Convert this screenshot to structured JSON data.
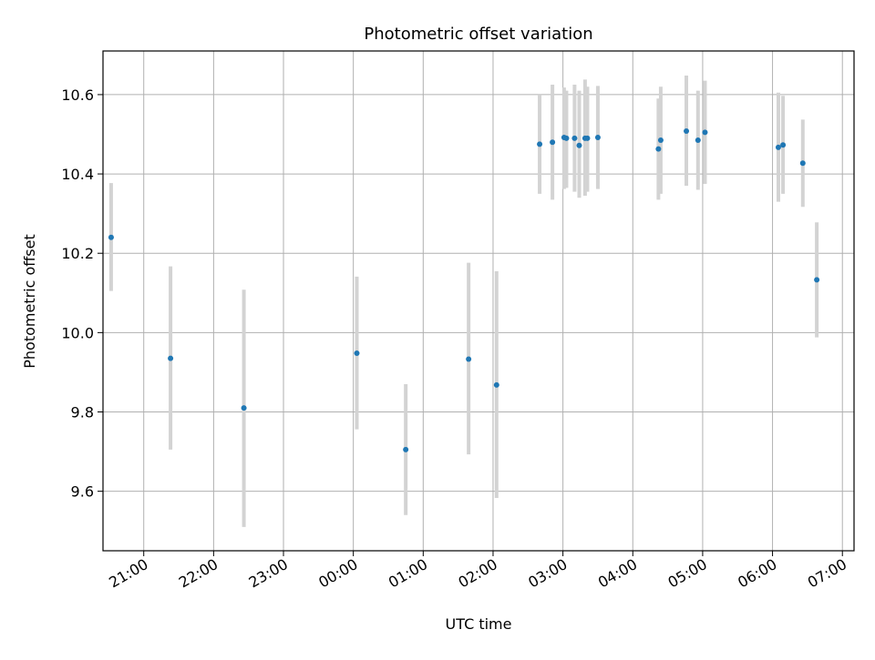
{
  "chart_data": {
    "type": "scatter",
    "title": "Photometric offset variation",
    "xlabel": "UTC time",
    "ylabel": "Photometric offset",
    "x_axis_type": "time",
    "xlim": [
      "20:25",
      "07:10"
    ],
    "ylim": [
      9.45,
      10.71
    ],
    "x_ticks": [
      "21:00",
      "22:00",
      "23:00",
      "00:00",
      "01:00",
      "02:00",
      "03:00",
      "04:00",
      "05:00",
      "06:00",
      "07:00"
    ],
    "y_ticks": [
      "9.6",
      "9.8",
      "10.0",
      "10.2",
      "10.4",
      "10.6"
    ],
    "grid": true,
    "point_color": "#1f77b4",
    "errorbar_color": "#d3d3d3",
    "points": [
      {
        "time": "20:32",
        "value": 10.24,
        "err_low": 10.105,
        "err_high": 10.377
      },
      {
        "time": "21:23",
        "value": 9.935,
        "err_low": 9.705,
        "err_high": 10.167
      },
      {
        "time": "22:26",
        "value": 9.81,
        "err_low": 9.51,
        "err_high": 10.108
      },
      {
        "time": "00:03",
        "value": 9.948,
        "err_low": 9.756,
        "err_high": 10.141
      },
      {
        "time": "00:45",
        "value": 9.705,
        "err_low": 9.54,
        "err_high": 9.87
      },
      {
        "time": "01:39",
        "value": 9.933,
        "err_low": 9.693,
        "err_high": 10.176
      },
      {
        "time": "02:03",
        "value": 9.868,
        "err_low": 9.583,
        "err_high": 10.155
      },
      {
        "time": "02:40",
        "value": 10.475,
        "err_low": 10.35,
        "err_high": 10.6
      },
      {
        "time": "02:51",
        "value": 10.48,
        "err_low": 10.335,
        "err_high": 10.625
      },
      {
        "time": "03:01",
        "value": 10.492,
        "err_low": 10.362,
        "err_high": 10.618
      },
      {
        "time": "03:03",
        "value": 10.49,
        "err_low": 10.365,
        "err_high": 10.61
      },
      {
        "time": "03:10",
        "value": 10.49,
        "err_low": 10.355,
        "err_high": 10.625
      },
      {
        "time": "03:14",
        "value": 10.472,
        "err_low": 10.34,
        "err_high": 10.61
      },
      {
        "time": "03:19",
        "value": 10.49,
        "err_low": 10.345,
        "err_high": 10.638
      },
      {
        "time": "03:21",
        "value": 10.49,
        "err_low": 10.355,
        "err_high": 10.62
      },
      {
        "time": "03:30",
        "value": 10.492,
        "err_low": 10.362,
        "err_high": 10.622
      },
      {
        "time": "04:22",
        "value": 10.463,
        "err_low": 10.335,
        "err_high": 10.59
      },
      {
        "time": "04:24",
        "value": 10.485,
        "err_low": 10.35,
        "err_high": 10.62
      },
      {
        "time": "04:46",
        "value": 10.508,
        "err_low": 10.37,
        "err_high": 10.648
      },
      {
        "time": "04:56",
        "value": 10.485,
        "err_low": 10.36,
        "err_high": 10.61
      },
      {
        "time": "05:02",
        "value": 10.505,
        "err_low": 10.375,
        "err_high": 10.635
      },
      {
        "time": "06:05",
        "value": 10.467,
        "err_low": 10.33,
        "err_high": 10.605
      },
      {
        "time": "06:09",
        "value": 10.473,
        "err_low": 10.35,
        "err_high": 10.597
      },
      {
        "time": "06:26",
        "value": 10.427,
        "err_low": 10.317,
        "err_high": 10.537
      },
      {
        "time": "06:38",
        "value": 10.133,
        "err_low": 9.988,
        "err_high": 10.278
      }
    ]
  }
}
